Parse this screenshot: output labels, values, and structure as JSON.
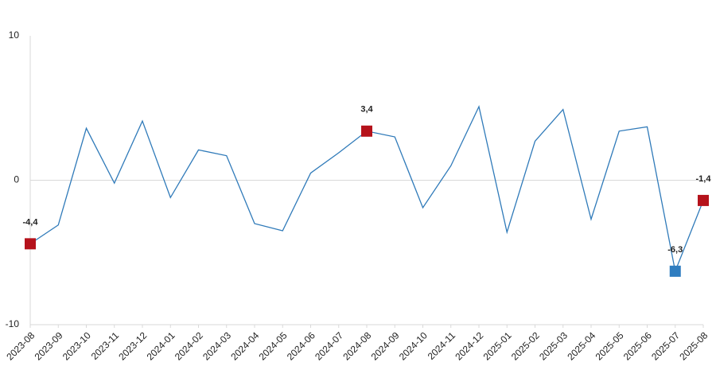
{
  "chart_data": {
    "type": "line",
    "categories": [
      "2023-08",
      "2023-09",
      "2023-10",
      "2023-11",
      "2023-12",
      "2024-01",
      "2024-02",
      "2024-03",
      "2024-04",
      "2024-05",
      "2024-06",
      "2024-07",
      "2024-08",
      "2024-09",
      "2024-10",
      "2024-11",
      "2024-12",
      "2025-01",
      "2025-02",
      "2025-03",
      "2025-04",
      "2025-05",
      "2025-06",
      "2025-07",
      "2025-08"
    ],
    "values": [
      -4.4,
      -3.1,
      3.6,
      -0.2,
      4.1,
      -1.2,
      2.1,
      1.7,
      -3.0,
      -3.5,
      0.5,
      1.9,
      3.4,
      3.0,
      -1.9,
      1.0,
      5.1,
      -3.6,
      2.7,
      4.9,
      -2.7,
      3.4,
      3.7,
      -6.3,
      -1.4
    ],
    "value_labels": [
      "-4,4",
      null,
      null,
      null,
      null,
      null,
      null,
      null,
      null,
      null,
      null,
      null,
      "3,4",
      null,
      null,
      null,
      null,
      null,
      null,
      null,
      null,
      null,
      null,
      "-6,3",
      "-1,4"
    ],
    "marker_colors": [
      "#b5121b",
      null,
      null,
      null,
      null,
      null,
      null,
      null,
      null,
      null,
      null,
      null,
      "#b5121b",
      null,
      null,
      null,
      null,
      null,
      null,
      null,
      null,
      null,
      null,
      "#2e7dc0",
      "#b5121b"
    ],
    "color": "#2f7ab9",
    "ylim": [
      -10,
      10
    ],
    "yticks": [
      -10,
      0,
      10
    ],
    "grid": false
  }
}
